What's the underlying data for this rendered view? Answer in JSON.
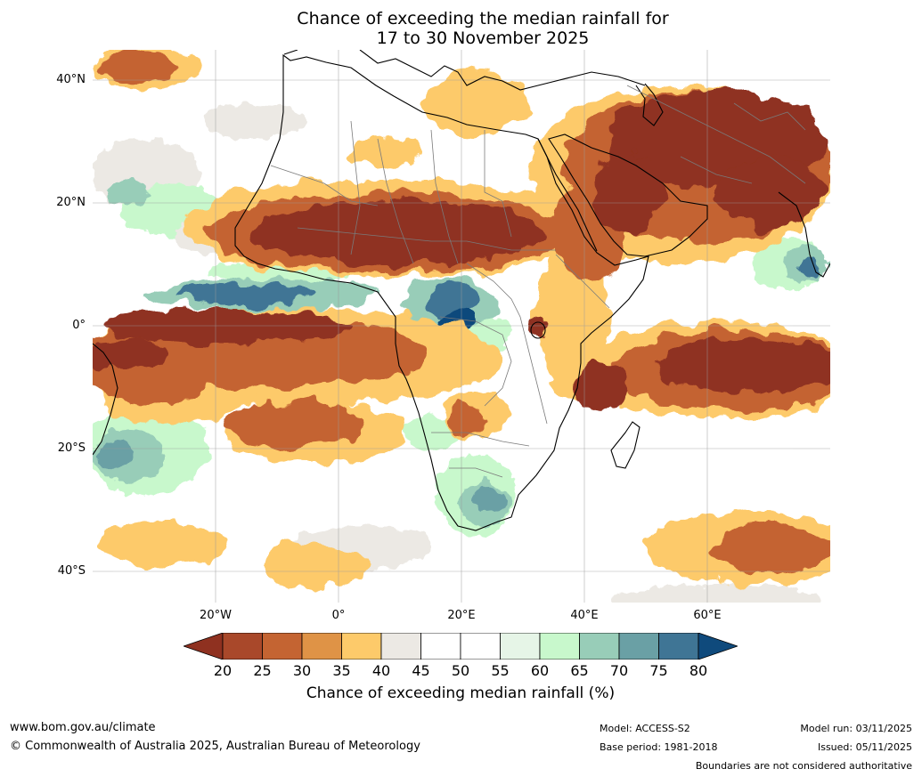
{
  "title": {
    "line1": "Chance of exceeding the median rainfall for",
    "line2": "17 to 30 November 2025"
  },
  "axes": {
    "lat_labels": [
      "40°N",
      "20°N",
      "0°",
      "20°S",
      "40°S"
    ],
    "lon_labels": [
      "20°W",
      "0°",
      "20°E",
      "40°E",
      "60°E"
    ]
  },
  "colorbar": {
    "title": "Chance of exceeding median rainfall (%)",
    "ticks": [
      "20",
      "25",
      "30",
      "35",
      "40",
      "45",
      "50",
      "55",
      "60",
      "65",
      "70",
      "75",
      "80"
    ],
    "colors": [
      "#8f3120",
      "#a9482a",
      "#c46432",
      "#df9346",
      "#fdca6a",
      "#ece9e4",
      "#ffffff",
      "#ffffff",
      "#e6f5e7",
      "#c8f8cc",
      "#98cdb8",
      "#6aa0a5",
      "#3f7595",
      "#0f4a7c"
    ]
  },
  "footer": {
    "website": "www.bom.gov.au/climate",
    "copyright": "© Commonwealth of Australia 2025, Australian Bureau of Meteorology",
    "model": "Model: ACCESS-S2",
    "base_period": "Base period: 1981-2018",
    "model_run": "Model run: 03/11/2025",
    "issued": "Issued: 05/11/2025",
    "disclaimer": "Boundaries are not considered authoritative"
  }
}
